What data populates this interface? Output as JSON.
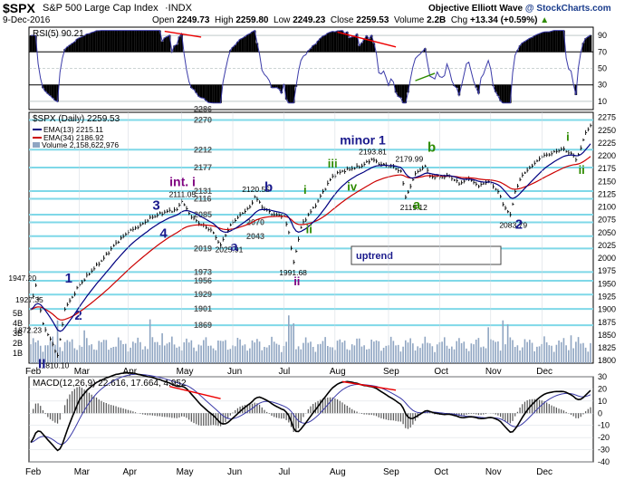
{
  "header": {
    "symbol": "$SPX",
    "name": "S&P 500 Large Cap Index",
    "exchange": "INDX",
    "date": "9-Dec-2016",
    "open_label": "Open",
    "open": "2249.73",
    "high_label": "High",
    "high": "2259.80",
    "low_label": "Low",
    "low": "2249.23",
    "close_label": "Close",
    "close": "2259.53",
    "volume_label": "Volume",
    "volume": "2.2B",
    "chg_label": "Chg",
    "chg": "+13.34 (+0.59%)",
    "brand": "Objective Elliott Wave",
    "source": "@ StockCharts.com"
  },
  "rsi": {
    "label": "RSI(5) 90.21",
    "levels": [
      10,
      30,
      50,
      70,
      90
    ],
    "ylim": [
      0,
      100
    ]
  },
  "price_panel": {
    "label": "$SPX (Daily) 2259.53",
    "ema13_label": "EMA(13) 2215.11",
    "ema34_label": "EMA(34) 2186.92",
    "volume_label": "Volume 2,158,622,976",
    "volume_ticks": [
      "5B",
      "4B",
      "3B",
      "2B",
      "1B"
    ],
    "uptrend_label": "uptrend"
  },
  "macd": {
    "label": "MACD(12,26,9) 22.616, 17.664, 4.952",
    "ylim": [
      -40,
      30
    ],
    "yticks": [
      30,
      20,
      10,
      0,
      -10,
      -20,
      -30,
      -40
    ]
  },
  "chart_data": {
    "type": "line",
    "y_ticks": [
      2275,
      2250,
      2225,
      2200,
      2175,
      2150,
      2125,
      2100,
      2075,
      2050,
      2025,
      2000,
      1975,
      1950,
      1925,
      1900,
      1875,
      1850,
      1825,
      1800
    ],
    "ylim": [
      1795,
      2285
    ],
    "x_ticks": [
      "Feb",
      "Mar",
      "Apr",
      "May",
      "Jun",
      "Jul",
      "Aug",
      "Sep",
      "Oct",
      "Nov",
      "Dec"
    ],
    "fib_levels": [
      {
        "value": 2286,
        "label": "2286"
      },
      {
        "value": 2270,
        "label": "2270"
      },
      {
        "value": 2212,
        "label": "2212"
      },
      {
        "value": 2177,
        "label": "2177"
      },
      {
        "value": 2131,
        "label": "2131"
      },
      {
        "value": 2116,
        "label": "2116"
      },
      {
        "value": 2085,
        "label": "2085"
      },
      {
        "value": 2070,
        "label": "2070"
      },
      {
        "value": 2043,
        "label": "2043"
      },
      {
        "value": 2019,
        "label": "2019"
      },
      {
        "value": 1973,
        "label": "1973"
      },
      {
        "value": 1956,
        "label": "1956"
      },
      {
        "value": 1929,
        "label": "1929"
      },
      {
        "value": 1901,
        "label": "1901"
      },
      {
        "value": 1869,
        "label": "1869"
      }
    ],
    "price_labels": [
      {
        "i": 2,
        "v": 1947.2,
        "label": "1947.20"
      },
      {
        "i": 3,
        "v": 1927.35,
        "label": "1927.35"
      },
      {
        "i": 5,
        "v": 1872.23,
        "label": "1872.23"
      },
      {
        "i": 11,
        "v": 1810.1,
        "label": "1810.10"
      },
      {
        "i": 62,
        "v": 2111.05,
        "label": "2111.05"
      },
      {
        "i": 78,
        "v": 2025.91,
        "label": "2025.91"
      },
      {
        "i": 92,
        "v": 2120.55,
        "label": "2120.55"
      },
      {
        "i": 108,
        "v": 1991.68,
        "label": "1991.68"
      },
      {
        "i": 140,
        "v": 2193.81,
        "label": "2193.81"
      },
      {
        "i": 155,
        "v": 2179.99,
        "label": "2179.99"
      },
      {
        "i": 154,
        "v": 2119.12,
        "label": "2119.12"
      },
      {
        "i": 197,
        "v": 2083.79,
        "label": "2083.79"
      }
    ],
    "wave_labels": [
      {
        "label": "II",
        "i": 3,
        "v": 1785,
        "color": "#1a1a8c"
      },
      {
        "label": "1",
        "i": 14,
        "v": 1952,
        "color": "#1a1a8c"
      },
      {
        "label": "2",
        "i": 18,
        "v": 1880,
        "color": "#1a1a8c"
      },
      {
        "label": "3",
        "i": 50,
        "v": 2095,
        "color": "#1a1a8c"
      },
      {
        "label": "4",
        "i": 53,
        "v": 2040,
        "color": "#1a1a8c"
      },
      {
        "label": "int. i",
        "i": 57,
        "v": 2141,
        "color": "#800080"
      },
      {
        "label": "a",
        "i": 82,
        "v": 2014,
        "color": "#1a1a8c"
      },
      {
        "label": "b",
        "i": 96,
        "v": 2130,
        "color": "#1a1a8c"
      },
      {
        "label": "ii",
        "i": 108,
        "v": 1947,
        "color": "#800080"
      },
      {
        "label": "i",
        "i": 112,
        "v": 2126,
        "color": "#2e8b00"
      },
      {
        "label": "ii",
        "i": 113,
        "v": 2049,
        "color": "#2e8b00"
      },
      {
        "label": "minor 1",
        "i": 127,
        "v": 2222,
        "color": "#1a1a8c"
      },
      {
        "label": "iii",
        "i": 122,
        "v": 2177,
        "color": "#2e8b00"
      },
      {
        "label": "iv",
        "i": 130,
        "v": 2132,
        "color": "#2e8b00"
      },
      {
        "label": "b",
        "i": 163,
        "v": 2208,
        "color": "#2e8b00"
      },
      {
        "label": "a",
        "i": 157,
        "v": 2096,
        "color": "#2e8b00"
      },
      {
        "label": "2",
        "i": 199,
        "v": 2058,
        "color": "#1a1a8c"
      },
      {
        "label": "i",
        "i": 220,
        "v": 2229,
        "color": "#2e8b00"
      },
      {
        "label": "ii",
        "i": 225,
        "v": 2165,
        "color": "#2e8b00"
      }
    ],
    "anchors": [
      [
        0,
        1900
      ],
      [
        2,
        1947
      ],
      [
        5,
        1872
      ],
      [
        11,
        1810
      ],
      [
        14,
        1900
      ],
      [
        20,
        1948
      ],
      [
        25,
        1975
      ],
      [
        30,
        2000
      ],
      [
        35,
        2030
      ],
      [
        40,
        2050
      ],
      [
        45,
        2065
      ],
      [
        50,
        2080
      ],
      [
        55,
        2090
      ],
      [
        60,
        2095
      ],
      [
        62,
        2111
      ],
      [
        66,
        2080
      ],
      [
        70,
        2065
      ],
      [
        74,
        2055
      ],
      [
        78,
        2026
      ],
      [
        82,
        2065
      ],
      [
        86,
        2085
      ],
      [
        90,
        2100
      ],
      [
        92,
        2120
      ],
      [
        96,
        2096
      ],
      [
        100,
        2085
      ],
      [
        104,
        2083
      ],
      [
        106,
        2050
      ],
      [
        108,
        1992
      ],
      [
        111,
        2060
      ],
      [
        114,
        2085
      ],
      [
        117,
        2102
      ],
      [
        120,
        2130
      ],
      [
        124,
        2160
      ],
      [
        128,
        2170
      ],
      [
        132,
        2175
      ],
      [
        136,
        2180
      ],
      [
        140,
        2193
      ],
      [
        144,
        2183
      ],
      [
        148,
        2180
      ],
      [
        152,
        2170
      ],
      [
        154,
        2119
      ],
      [
        156,
        2140
      ],
      [
        158,
        2165
      ],
      [
        160,
        2172
      ],
      [
        162,
        2180
      ],
      [
        164,
        2160
      ],
      [
        168,
        2158
      ],
      [
        172,
        2160
      ],
      [
        176,
        2145
      ],
      [
        180,
        2155
      ],
      [
        184,
        2140
      ],
      [
        188,
        2150
      ],
      [
        192,
        2130
      ],
      [
        194,
        2105
      ],
      [
        197,
        2085
      ],
      [
        199,
        2130
      ],
      [
        202,
        2162
      ],
      [
        206,
        2180
      ],
      [
        210,
        2198
      ],
      [
        214,
        2204
      ],
      [
        218,
        2213
      ],
      [
        222,
        2205
      ],
      [
        224,
        2192
      ],
      [
        226,
        2215
      ],
      [
        228,
        2245
      ],
      [
        230,
        2259
      ]
    ],
    "series": [
      {
        "name": "EMA(13)",
        "color": "#000000"
      },
      {
        "name": "EMA(34)",
        "color": "#cc0000"
      }
    ],
    "volume_spikes": [
      [
        11,
        4.3
      ],
      [
        22,
        3.3
      ],
      [
        49,
        4.4
      ],
      [
        54,
        3.0
      ],
      [
        106,
        4.8
      ],
      [
        107,
        3.8
      ],
      [
        108,
        4.0
      ],
      [
        188,
        3.6
      ],
      [
        194,
        4.3
      ],
      [
        196,
        3.9
      ],
      [
        222,
        2.8
      ]
    ]
  }
}
